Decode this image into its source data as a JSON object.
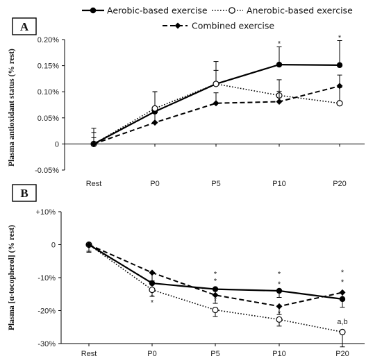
{
  "legend": {
    "items": [
      {
        "label": "Aerobic-based exercise",
        "style": "solid",
        "marker": "filled-circle"
      },
      {
        "label": "Anerobic-based exercise",
        "style": "dotted",
        "marker": "open-circle"
      },
      {
        "label": "Combined exercise",
        "style": "dashed",
        "marker": "filled-diamond"
      }
    ]
  },
  "chart_data": [
    {
      "type": "line",
      "panel_label": "A",
      "ylabel": "Plasma antioxidant status (% rest)",
      "categories": [
        "Rest",
        "P0",
        "P5",
        "P10",
        "P20"
      ],
      "ylim": [
        -0.05,
        0.2
      ],
      "yticks": [
        {
          "value": 0.2,
          "label": "0.20%"
        },
        {
          "value": 0.15,
          "label": "0.15%"
        },
        {
          "value": 0.1,
          "label": "0.10%"
        },
        {
          "value": 0.05,
          "label": "0.05%"
        },
        {
          "value": 0,
          "label": "0"
        },
        {
          "value": -0.05,
          "label": "-0.05%"
        }
      ],
      "grid": false,
      "series": [
        {
          "name": "Aerobic-based exercise",
          "style": "solid",
          "marker": "filled-circle",
          "values": [
            0,
            0.062,
            0.115,
            0.152,
            0.151
          ],
          "errors": [
            0.03,
            0.038,
            0.043,
            0.034,
            0.047
          ]
        },
        {
          "name": "Anerobic-based exercise",
          "style": "dotted",
          "marker": "open-circle",
          "values": [
            0,
            0.068,
            0.115,
            0.093,
            0.078
          ],
          "errors": [
            0.022,
            0.032,
            0.026,
            0.03,
            0.03
          ]
        },
        {
          "name": "Combined exercise",
          "style": "dashed",
          "marker": "filled-diamond",
          "values": [
            0,
            0.041,
            0.078,
            0.081,
            0.111
          ],
          "errors": [
            0.012,
            0.02,
            0.02,
            0.02,
            0.021
          ]
        }
      ],
      "annotations": [
        {
          "text": "*",
          "category": "P10",
          "y": 0.193
        },
        {
          "text": "*",
          "category": "P20",
          "y": 0.204
        }
      ]
    },
    {
      "type": "line",
      "panel_label": "B",
      "ylabel": "Plasma [α-tocopherol] (% rest)",
      "categories": [
        "Rest",
        "P0",
        "P5",
        "P10",
        "P20"
      ],
      "ylim": [
        -30,
        10
      ],
      "yticks": [
        {
          "value": 10,
          "label": "+10%"
        },
        {
          "value": 0,
          "label": "0"
        },
        {
          "value": -10,
          "label": "-10%"
        },
        {
          "value": -20,
          "label": "-20%"
        },
        {
          "value": -30,
          "label": "-30%"
        }
      ],
      "grid": false,
      "series": [
        {
          "name": "Aerobic-based exercise",
          "style": "solid",
          "marker": "filled-circle",
          "values": [
            0,
            -11.7,
            -13.5,
            -14,
            -16.5
          ],
          "errors": [
            2.0,
            2.0,
            2.0,
            2.0,
            2.5
          ]
        },
        {
          "name": "Anerobic-based exercise",
          "style": "dotted",
          "marker": "open-circle",
          "values": [
            0,
            -13.7,
            -19.8,
            -22.7,
            -26.5
          ],
          "errors": [
            2.0,
            2.0,
            2.0,
            2.0,
            4.5
          ]
        },
        {
          "name": "Combined exercise",
          "style": "dashed",
          "marker": "filled-diamond",
          "values": [
            0,
            -8.5,
            -15.3,
            -18.7,
            -14.5
          ],
          "errors": [
            2.3,
            2.5,
            2.5,
            2.5,
            2.5
          ]
        }
      ],
      "annotations": [
        {
          "text": "*",
          "category": "P0",
          "y": -15.8
        },
        {
          "text": "*",
          "category": "P0",
          "y": -17.5
        },
        {
          "text": "*",
          "category": "P5",
          "y": -8.8
        },
        {
          "text": "*",
          "category": "P5",
          "y": -10.9
        },
        {
          "text": "*",
          "category": "P5",
          "y": -16.8
        },
        {
          "text": "*",
          "category": "P10",
          "y": -8.8
        },
        {
          "text": "*",
          "category": "P10",
          "y": -11.9
        },
        {
          "text": "*",
          "category": "P10",
          "y": -20.7
        },
        {
          "text": "*",
          "category": "P20",
          "y": -8.3
        },
        {
          "text": "*",
          "category": "P20",
          "y": -11.3
        },
        {
          "text": "a,b",
          "category": "P20",
          "y": -23.3
        }
      ]
    }
  ]
}
